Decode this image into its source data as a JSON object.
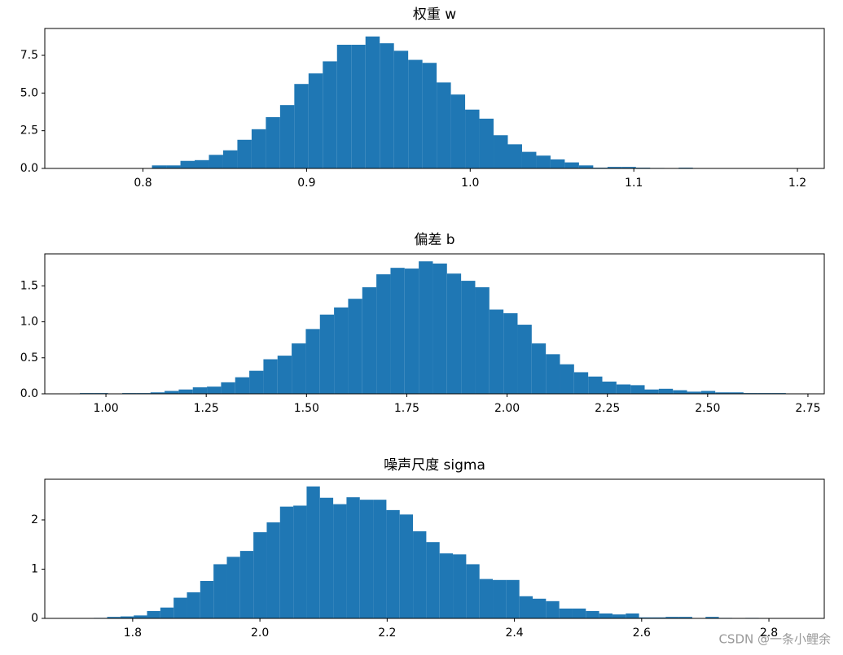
{
  "chart_data": [
    {
      "type": "histogram",
      "title": "权重 w",
      "color": "#1f77b4",
      "bins": [
        0.762,
        0.7707,
        0.7794,
        0.7881,
        0.7968,
        0.8055,
        0.8142,
        0.8229,
        0.8316,
        0.8403,
        0.849,
        0.8577,
        0.8664,
        0.8751,
        0.8838,
        0.8925,
        0.9012,
        0.9099,
        0.9186,
        0.9273,
        0.936,
        0.9447,
        0.9534,
        0.9621,
        0.9708,
        0.9795,
        0.9882,
        0.9969,
        1.0056,
        1.0143,
        1.023,
        1.0317,
        1.0404,
        1.0491,
        1.0578,
        1.0665,
        1.0752,
        1.0839,
        1.0926,
        1.1013,
        1.11,
        1.1187,
        1.1274,
        1.1361,
        1.1448,
        1.1535,
        1.1622,
        1.1709,
        1.1796,
        1.1883,
        1.197
      ],
      "values": [
        0.01,
        0.01,
        0.01,
        0.01,
        0.02,
        0.2,
        0.2,
        0.5,
        0.55,
        0.9,
        1.2,
        1.9,
        2.6,
        3.4,
        4.2,
        5.6,
        6.3,
        7.1,
        8.2,
        8.2,
        8.75,
        8.3,
        7.8,
        7.2,
        7.0,
        5.7,
        4.9,
        3.9,
        3.3,
        2.2,
        1.6,
        1.1,
        0.85,
        0.6,
        0.4,
        0.2,
        0.05,
        0.1,
        0.1,
        0.05,
        0.03,
        0.02,
        0.05,
        0.01,
        0.01,
        0,
        0.01,
        0,
        0.01,
        0.01
      ],
      "xlim": [
        0.74,
        1.2164
      ],
      "ylim": [
        0,
        9.28
      ],
      "xticks": [
        0.8,
        0.9,
        {
          "value": 1.0,
          "label": "1.0"
        },
        1.1,
        1.2
      ],
      "yticks": [
        {
          "value": 0,
          "label": "0.0"
        },
        2.5,
        {
          "value": 5,
          "label": "5.0"
        },
        7.5
      ]
    },
    {
      "type": "histogram",
      "title": "偏差 b",
      "color": "#1f77b4",
      "bins": [
        0.935,
        0.9702,
        1.0054,
        1.0406,
        1.0758,
        1.111,
        1.1462,
        1.1814,
        1.2166,
        1.2518,
        1.287,
        1.3222,
        1.3574,
        1.3926,
        1.4278,
        1.463,
        1.4982,
        1.5334,
        1.5686,
        1.6038,
        1.639,
        1.6742,
        1.7094,
        1.7446,
        1.7798,
        1.815,
        1.8502,
        1.8854,
        1.9206,
        1.9558,
        1.991,
        2.0262,
        2.0614,
        2.0966,
        2.1318,
        2.167,
        2.2022,
        2.2374,
        2.2726,
        2.3078,
        2.343,
        2.3782,
        2.4134,
        2.4486,
        2.4838,
        2.519,
        2.5542,
        2.5894,
        2.6246,
        2.6598,
        2.695
      ],
      "values": [
        0.01,
        0.01,
        0,
        0.01,
        0.01,
        0.02,
        0.04,
        0.06,
        0.09,
        0.1,
        0.16,
        0.23,
        0.32,
        0.48,
        0.53,
        0.7,
        0.9,
        1.1,
        1.2,
        1.32,
        1.48,
        1.66,
        1.75,
        1.74,
        1.84,
        1.81,
        1.67,
        1.57,
        1.48,
        1.17,
        1.12,
        0.96,
        0.7,
        0.55,
        0.41,
        0.3,
        0.24,
        0.17,
        0.13,
        0.12,
        0.06,
        0.07,
        0.05,
        0.03,
        0.04,
        0.02,
        0.02,
        0.01,
        0.01,
        0.01
      ],
      "xlim": [
        0.8476,
        2.7907
      ],
      "ylim": [
        0,
        1.944
      ],
      "xticks": [
        {
          "value": 1,
          "label": "1.00"
        },
        1.25,
        {
          "value": 1.5,
          "label": "1.50"
        },
        1.75,
        {
          "value": 2,
          "label": "2.00"
        },
        2.25,
        {
          "value": 2.5,
          "label": "2.50"
        },
        2.75
      ],
      "yticks": [
        {
          "value": 0,
          "label": "0.0"
        },
        0.5,
        {
          "value": 1,
          "label": "1.0"
        },
        1.5
      ]
    },
    {
      "type": "histogram",
      "title": "噪声尺度 sigma",
      "color": "#1f77b4",
      "bins": [
        1.739,
        1.7599,
        1.7808,
        1.8017,
        1.8226,
        1.8435,
        1.8644,
        1.8853,
        1.9062,
        1.9271,
        1.948,
        1.9689,
        1.9898,
        2.0107,
        2.0316,
        2.0525,
        2.0734,
        2.0943,
        2.1152,
        2.1361,
        2.157,
        2.1779,
        2.1988,
        2.2197,
        2.2406,
        2.2615,
        2.2824,
        2.3033,
        2.3242,
        2.3451,
        2.366,
        2.3869,
        2.4078,
        2.4287,
        2.4496,
        2.4705,
        2.4914,
        2.5123,
        2.5332,
        2.5541,
        2.575,
        2.5959,
        2.6168,
        2.6377,
        2.6586,
        2.6795,
        2.7004,
        2.7213,
        2.7422,
        2.7631,
        2.784
      ],
      "values": [
        0.01,
        0.03,
        0.04,
        0.06,
        0.15,
        0.22,
        0.42,
        0.53,
        0.76,
        1.1,
        1.25,
        1.37,
        1.75,
        1.95,
        2.27,
        2.29,
        2.68,
        2.45,
        2.32,
        2.46,
        2.41,
        2.41,
        2.2,
        2.11,
        1.77,
        1.55,
        1.32,
        1.3,
        1.1,
        0.8,
        0.78,
        0.78,
        0.45,
        0.4,
        0.35,
        0.2,
        0.2,
        0.15,
        0.1,
        0.08,
        0.1,
        0.02,
        0.02,
        0.03,
        0.03,
        0,
        0.03,
        0.01,
        0,
        0.01
      ],
      "xlim": [
        1.6619,
        2.887
      ],
      "ylim": [
        0,
        2.826
      ],
      "xticks": [
        1.8,
        {
          "value": 2,
          "label": "2.0"
        },
        2.2,
        2.4,
        2.6,
        2.8
      ],
      "yticks": [
        0,
        1,
        2
      ]
    }
  ],
  "watermark": "CSDN @一条小鲤余"
}
